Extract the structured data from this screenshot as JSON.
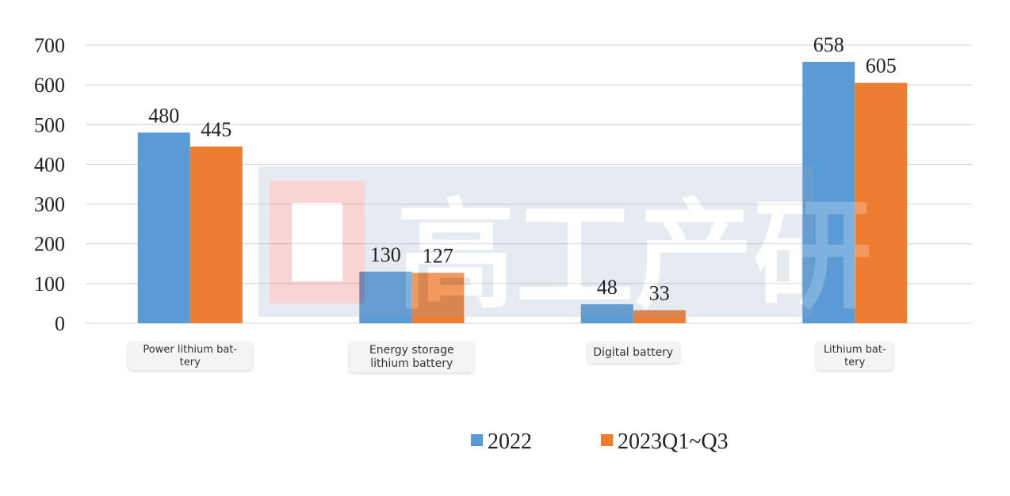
{
  "chart_data": {
    "type": "bar",
    "categories": [
      "Power lithium bat-\ntery",
      "Energy storage\nlithium battery",
      "Digital battery",
      "Lithium bat-\ntery"
    ],
    "series": [
      {
        "name": "2022",
        "color": "#5b9bd5",
        "values": [
          480,
          130,
          48,
          658
        ]
      },
      {
        "name": "2023Q1~Q3",
        "color": "#ed7d31",
        "values": [
          445,
          127,
          33,
          605
        ]
      }
    ],
    "yticks": [
      "0",
      "100",
      "200",
      "300",
      "400",
      "500",
      "600",
      "700"
    ],
    "ylim": [
      0,
      700
    ],
    "grid": true,
    "legend": "bottom-center",
    "watermark": "高工产研"
  }
}
